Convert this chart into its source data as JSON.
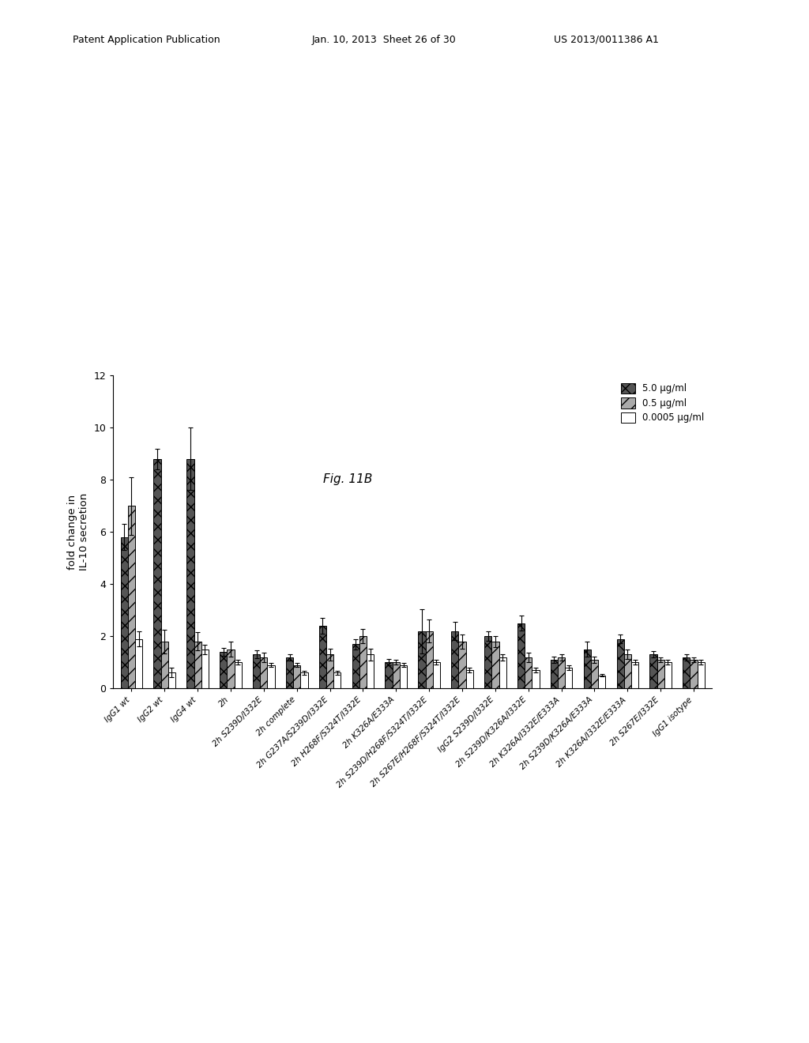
{
  "title": "Fig. 11B",
  "ylabel": "fold change in\nIL-10 secretion",
  "ylim": [
    0,
    12
  ],
  "yticks": [
    0,
    2,
    4,
    6,
    8,
    10,
    12
  ],
  "categories": [
    "IgG1 wt",
    "IgG2 wt",
    "IgG4 wt",
    "2h",
    "2h S239D/I332E",
    "2h complete",
    "2h G237A/S239D/I332E",
    "2h H268F/S324T/I332E",
    "2h K326A/E333A",
    "2h S239D/H268F/S324T/I332E",
    "2h S267E/H268F/S324T/I332E",
    "IgG2 S239D/I332E",
    "2h S239D/K326A/I332E",
    "2h K326A/I332E/E333A",
    "2h S239D/K326A/E333A",
    "2h K326A/I332E/E333A",
    "2h S267E/I332E",
    "IgG1 isotype"
  ],
  "values_5": [
    5.8,
    8.8,
    8.8,
    1.4,
    1.3,
    1.2,
    2.4,
    1.7,
    1.0,
    2.2,
    2.2,
    2.0,
    2.5,
    1.1,
    1.5,
    1.9,
    1.3,
    1.2
  ],
  "values_05": [
    7.0,
    1.8,
    1.8,
    1.5,
    1.2,
    0.9,
    1.3,
    2.0,
    1.0,
    2.2,
    1.8,
    1.8,
    1.2,
    1.2,
    1.1,
    1.3,
    1.1,
    1.1
  ],
  "values_0005": [
    1.9,
    0.6,
    1.5,
    1.0,
    0.9,
    0.6,
    0.6,
    1.3,
    0.9,
    1.0,
    0.7,
    1.2,
    0.7,
    0.8,
    0.5,
    1.0,
    1.0,
    1.0
  ],
  "err_5": [
    0.5,
    0.4,
    1.2,
    0.15,
    0.15,
    0.12,
    0.3,
    0.2,
    0.12,
    0.85,
    0.35,
    0.18,
    0.28,
    0.12,
    0.28,
    0.18,
    0.12,
    0.12
  ],
  "err_05": [
    1.1,
    0.45,
    0.35,
    0.28,
    0.18,
    0.09,
    0.22,
    0.28,
    0.09,
    0.45,
    0.28,
    0.22,
    0.18,
    0.12,
    0.12,
    0.18,
    0.09,
    0.09
  ],
  "err_0005": [
    0.28,
    0.18,
    0.18,
    0.09,
    0.09,
    0.07,
    0.07,
    0.22,
    0.09,
    0.09,
    0.09,
    0.12,
    0.09,
    0.09,
    0.05,
    0.09,
    0.09,
    0.09
  ],
  "color_5": "#555555",
  "color_05": "#aaaaaa",
  "color_0005": "#ffffff",
  "hatch_5": "xx",
  "hatch_05": "//",
  "hatch_0005": "",
  "legend_labels": [
    "5.0 μg/ml",
    "0.5 μg/ml",
    "0.0005 μg/ml"
  ],
  "bar_width": 0.22,
  "edgecolor": "#000000",
  "background_color": "#ffffff",
  "figure_title": "Fig. 11B",
  "header_left": "Patent Application Publication",
  "header_mid": "Jan. 10, 2013  Sheet 26 of 30",
  "header_right": "US 2013/0011386 A1"
}
